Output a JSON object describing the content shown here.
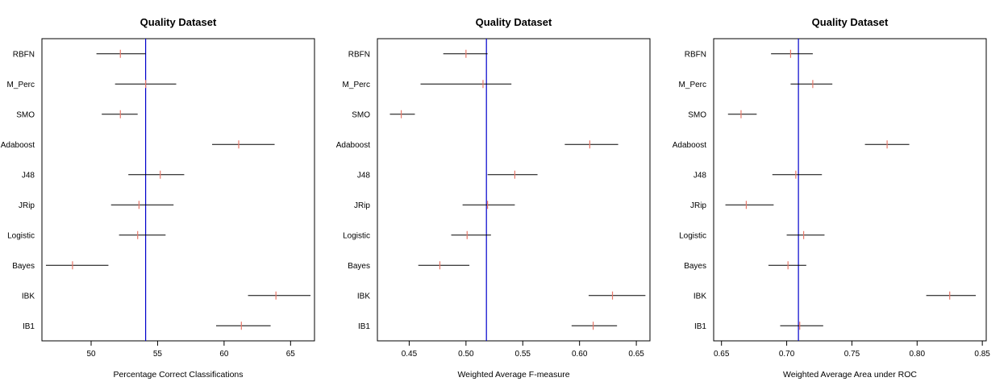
{
  "chart_data": [
    {
      "type": "forest",
      "title": "Quality Dataset",
      "xlabel": "Percentage Correct Classifications",
      "xlim": [
        46.3,
        66.8
      ],
      "xticks": [
        50,
        55,
        60,
        65
      ],
      "reference_value": 54.1,
      "reference_color": "#0000cc",
      "marker_color": "#e8786a",
      "categories": [
        "RBFN",
        "M_Perc",
        "SMO",
        "Adaboost",
        "J48",
        "JRip",
        "Logistic",
        "Bayes",
        "IBK",
        "IB1"
      ],
      "estimates": [
        52.2,
        54.1,
        52.2,
        61.1,
        55.2,
        53.6,
        53.5,
        48.6,
        63.9,
        61.3
      ],
      "lower": [
        50.4,
        51.8,
        50.8,
        59.1,
        52.8,
        51.5,
        52.1,
        46.6,
        61.8,
        59.4
      ],
      "upper": [
        54.1,
        56.4,
        53.5,
        63.8,
        57.0,
        56.2,
        55.6,
        51.3,
        66.5,
        63.5
      ]
    },
    {
      "type": "forest",
      "title": "Quality Dataset",
      "xlabel": "Weighted Average F-measure",
      "xlim": [
        0.422,
        0.662
      ],
      "xticks": [
        0.45,
        0.5,
        0.55,
        0.6,
        0.65
      ],
      "reference_value": 0.518,
      "reference_color": "#0000cc",
      "marker_color": "#e8786a",
      "categories": [
        "RBFN",
        "M_Perc",
        "SMO",
        "Adaboost",
        "J48",
        "JRip",
        "Logistic",
        "Bayes",
        "IBK",
        "IB1"
      ],
      "estimates": [
        0.5,
        0.515,
        0.443,
        0.609,
        0.543,
        0.519,
        0.501,
        0.477,
        0.629,
        0.612
      ],
      "lower": [
        0.48,
        0.46,
        0.433,
        0.587,
        0.519,
        0.497,
        0.487,
        0.458,
        0.608,
        0.593
      ],
      "upper": [
        0.519,
        0.54,
        0.455,
        0.634,
        0.563,
        0.543,
        0.522,
        0.503,
        0.658,
        0.633
      ]
    },
    {
      "type": "forest",
      "title": "Quality Dataset",
      "xlabel": "Weighted Average Area under ROC",
      "xlim": [
        0.644,
        0.853
      ],
      "xticks": [
        0.65,
        0.7,
        0.75,
        0.8,
        0.85
      ],
      "reference_value": 0.709,
      "reference_color": "#0000cc",
      "marker_color": "#e8786a",
      "categories": [
        "RBFN",
        "M_Perc",
        "SMO",
        "Adaboost",
        "J48",
        "JRip",
        "Logistic",
        "Bayes",
        "IBK",
        "IB1"
      ],
      "estimates": [
        0.703,
        0.72,
        0.665,
        0.777,
        0.707,
        0.669,
        0.713,
        0.701,
        0.825,
        0.71
      ],
      "lower": [
        0.688,
        0.703,
        0.655,
        0.76,
        0.689,
        0.653,
        0.7,
        0.686,
        0.807,
        0.695
      ],
      "upper": [
        0.72,
        0.735,
        0.677,
        0.794,
        0.727,
        0.69,
        0.729,
        0.715,
        0.845,
        0.728
      ]
    }
  ]
}
